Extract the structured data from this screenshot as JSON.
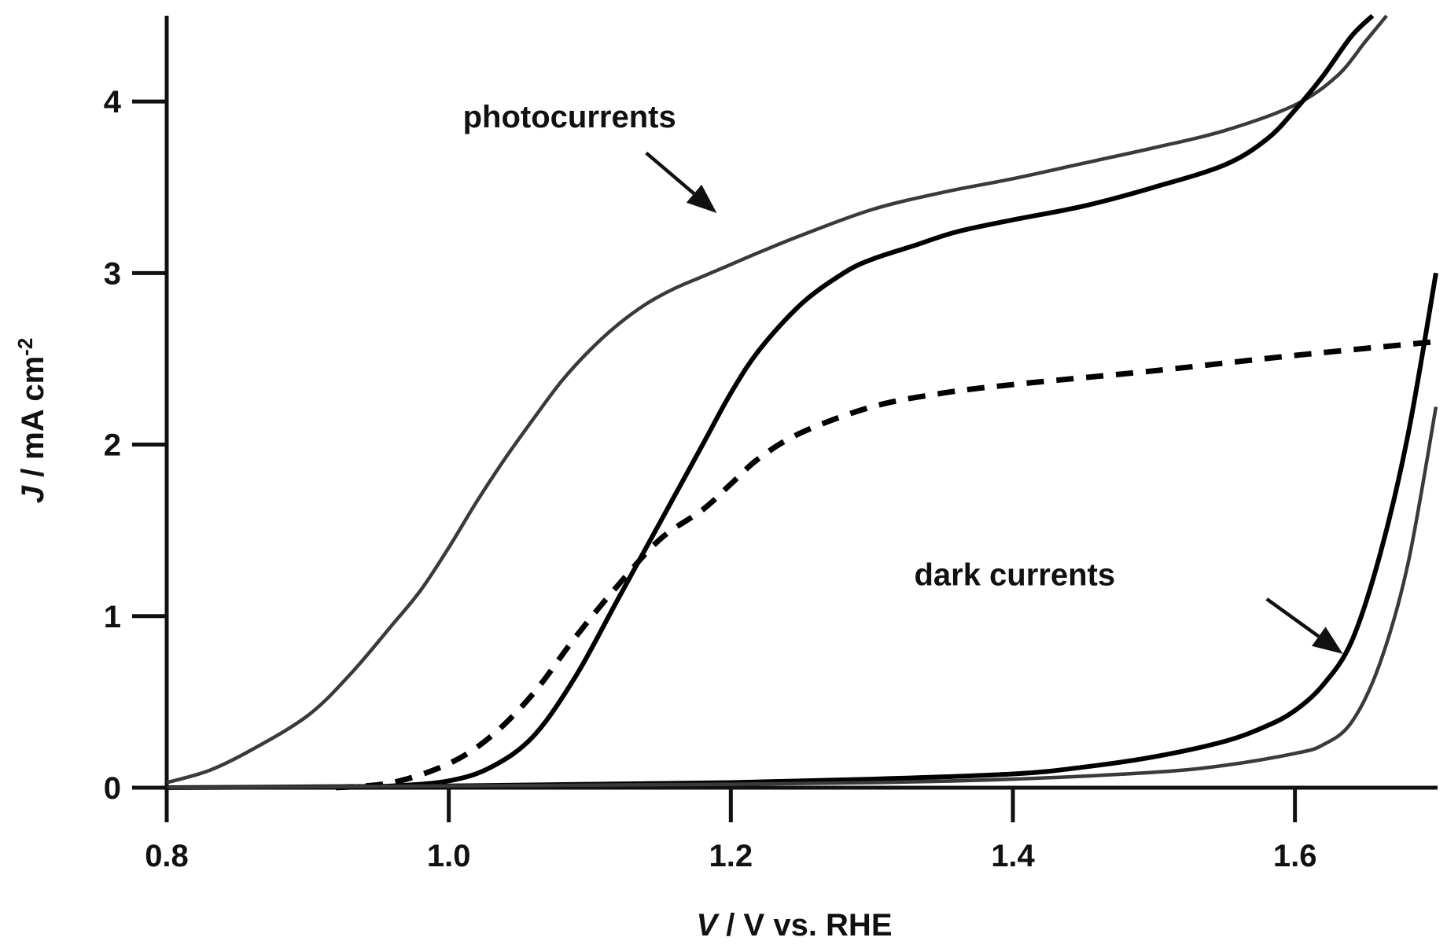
{
  "chart_data": {
    "type": "line",
    "xlabel": {
      "italic": "V",
      "rest": " / V vs. RHE"
    },
    "ylabel": {
      "italic": "J",
      "rest": " / mA cm",
      "sup": "-2"
    },
    "xlim": [
      0.8,
      1.7
    ],
    "ylim": [
      0,
      4.5
    ],
    "x_ticks": [
      "0.8",
      "1.0",
      "1.2",
      "1.4",
      "1.6"
    ],
    "y_ticks": [
      "0",
      "1",
      "2",
      "3",
      "4"
    ],
    "grid": false,
    "legend": "none",
    "annotations": [
      {
        "text": "photocurrents",
        "x": 1.01,
        "y": 3.85,
        "arrow_from": [
          1.14,
          3.7
        ],
        "arrow_to": [
          1.19,
          3.35
        ]
      },
      {
        "text": "dark currents",
        "x": 1.33,
        "y": 1.18,
        "arrow_from": [
          1.58,
          1.1
        ],
        "arrow_to": [
          1.634,
          0.78
        ]
      }
    ],
    "series": [
      {
        "style": "thin",
        "x": [
          0.8,
          0.83,
          0.86,
          0.9,
          0.93,
          0.96,
          0.98,
          1.0,
          1.02,
          1.04,
          1.06,
          1.08,
          1.1,
          1.12,
          1.14,
          1.16,
          1.18,
          1.2,
          1.22,
          1.25,
          1.3,
          1.35,
          1.4,
          1.45,
          1.5,
          1.55,
          1.6,
          1.63,
          1.65,
          1.665
        ],
        "y": [
          0.03,
          0.1,
          0.22,
          0.42,
          0.66,
          0.95,
          1.15,
          1.4,
          1.67,
          1.92,
          2.15,
          2.37,
          2.55,
          2.7,
          2.82,
          2.91,
          2.98,
          3.05,
          3.12,
          3.22,
          3.37,
          3.47,
          3.55,
          3.64,
          3.73,
          3.83,
          3.98,
          4.15,
          4.35,
          4.5
        ]
      },
      {
        "style": "thick",
        "x": [
          0.92,
          0.96,
          1.0,
          1.03,
          1.06,
          1.09,
          1.12,
          1.15,
          1.18,
          1.2,
          1.22,
          1.25,
          1.28,
          1.3,
          1.33,
          1.36,
          1.4,
          1.45,
          1.5,
          1.55,
          1.58,
          1.6,
          1.62,
          1.64,
          1.655
        ],
        "y": [
          0.0,
          0.01,
          0.04,
          0.12,
          0.3,
          0.65,
          1.1,
          1.55,
          2.0,
          2.3,
          2.55,
          2.82,
          3.0,
          3.08,
          3.16,
          3.24,
          3.31,
          3.39,
          3.5,
          3.63,
          3.78,
          3.95,
          4.15,
          4.38,
          4.5
        ]
      },
      {
        "style": "dashed",
        "x": [
          0.92,
          0.96,
          1.0,
          1.03,
          1.06,
          1.09,
          1.12,
          1.15,
          1.18,
          1.2,
          1.22,
          1.25,
          1.3,
          1.35,
          1.4,
          1.5,
          1.6,
          1.7
        ],
        "y": [
          0.0,
          0.03,
          0.14,
          0.3,
          0.55,
          0.88,
          1.18,
          1.45,
          1.62,
          1.77,
          1.92,
          2.07,
          2.22,
          2.3,
          2.35,
          2.43,
          2.52,
          2.6
        ]
      },
      {
        "style": "thick",
        "x": [
          0.8,
          0.9,
          1.0,
          1.1,
          1.2,
          1.3,
          1.4,
          1.45,
          1.5,
          1.55,
          1.58,
          1.6,
          1.62,
          1.64,
          1.66,
          1.68,
          1.7
        ],
        "y": [
          0.0,
          0.005,
          0.01,
          0.02,
          0.03,
          0.05,
          0.08,
          0.12,
          0.18,
          0.27,
          0.36,
          0.45,
          0.6,
          0.85,
          1.35,
          2.05,
          3.0
        ]
      },
      {
        "style": "thin",
        "x": [
          0.8,
          0.9,
          1.0,
          1.1,
          1.2,
          1.3,
          1.4,
          1.5,
          1.55,
          1.6,
          1.62,
          1.64,
          1.66,
          1.68,
          1.7
        ],
        "y": [
          0.0,
          0.005,
          0.01,
          0.015,
          0.02,
          0.03,
          0.05,
          0.09,
          0.13,
          0.2,
          0.25,
          0.38,
          0.72,
          1.3,
          2.22
        ]
      }
    ]
  }
}
